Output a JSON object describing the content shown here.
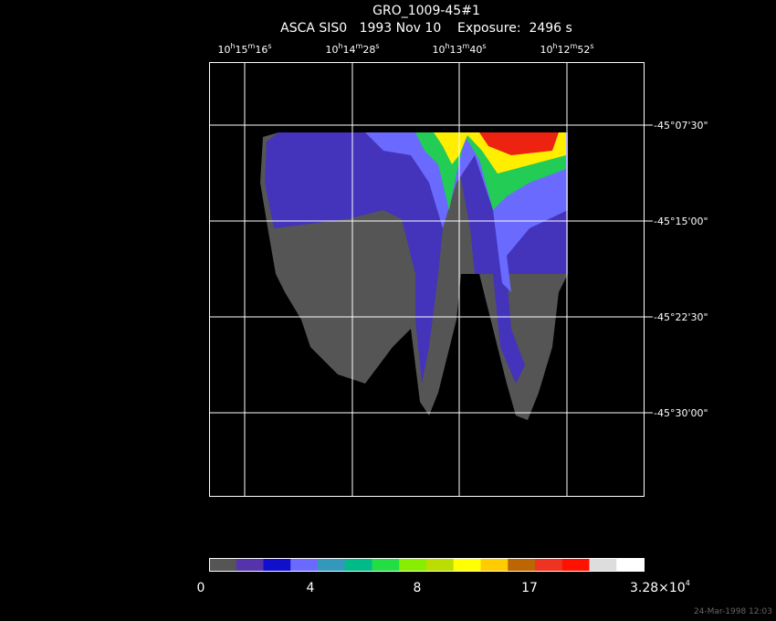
{
  "header": {
    "title": "GRO_1009-45#1",
    "subtitle": "ASCA SIS0   1993 Nov 10    Exposure:  2496 s"
  },
  "ra_labels": [
    [
      "10",
      "h",
      "15",
      "m",
      "16",
      "s"
    ],
    [
      "10",
      "h",
      "14",
      "m",
      "28",
      "s"
    ],
    [
      "10",
      "h",
      "13",
      "m",
      "40",
      "s"
    ],
    [
      "10",
      "h",
      "12",
      "m",
      "52",
      "s"
    ]
  ],
  "dec_labels": [
    "-45°07'30\"",
    "-45°15'00\"",
    "-45°22'30\"",
    "-45°30'00\""
  ],
  "colorbar": {
    "labels": [
      "0",
      "4",
      "8",
      "17"
    ],
    "max_label": {
      "base": "3.28×10",
      "exponent": "4"
    }
  },
  "timestamp": "24-Mar-1998 12:03"
}
